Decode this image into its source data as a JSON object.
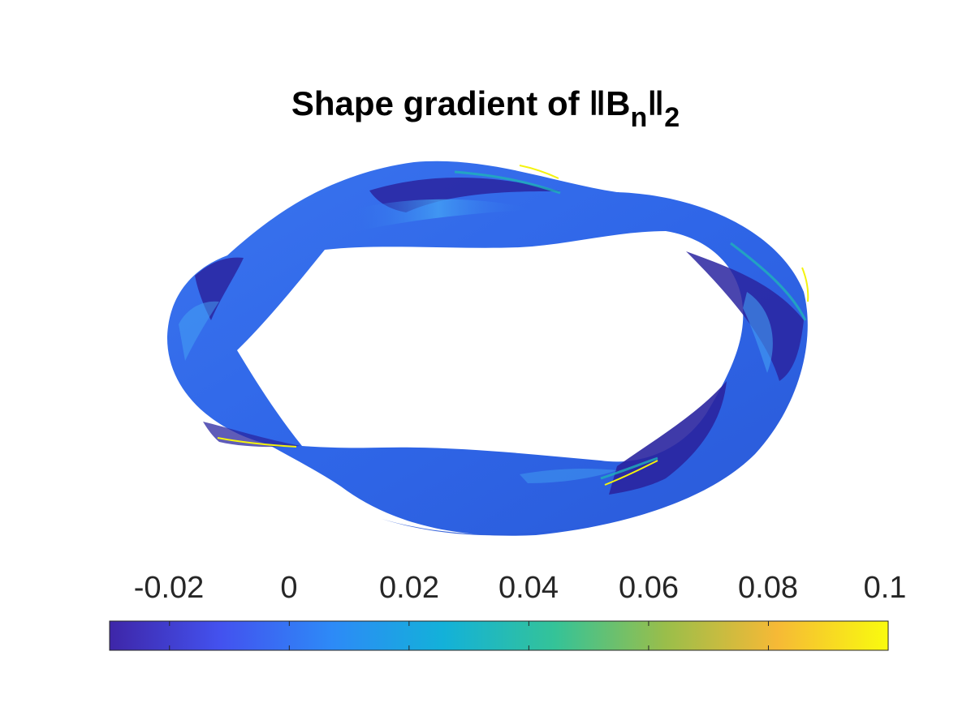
{
  "title": {
    "main": "Shape gradient of ",
    "norm_open": "‖B",
    "sub_n": "n",
    "norm_close": "‖",
    "sub_2": "2"
  },
  "colorbar": {
    "orientation": "horizontal",
    "colormap": "parula",
    "range": [
      -0.03,
      0.1
    ],
    "ticks": [
      "-0.02",
      "0",
      "0.02",
      "0.04",
      "0.06",
      "0.08",
      "0.1"
    ],
    "tick_values": [
      -0.02,
      0,
      0.02,
      0.04,
      0.06,
      0.08,
      0.1
    ],
    "colors": [
      "#3e26a8",
      "#4352ef",
      "#2d8af7",
      "#13b1d9",
      "#34c398",
      "#9abe4a",
      "#f6b936",
      "#f9fb0e"
    ]
  },
  "surface": {
    "base_color": "#2f66e8",
    "dark_band_color": "#2a25a0",
    "light_highlight_color": "#45a6f5",
    "teal_accent_color": "#1fb1b9",
    "yellow_accent_color": "#f4f30e"
  }
}
